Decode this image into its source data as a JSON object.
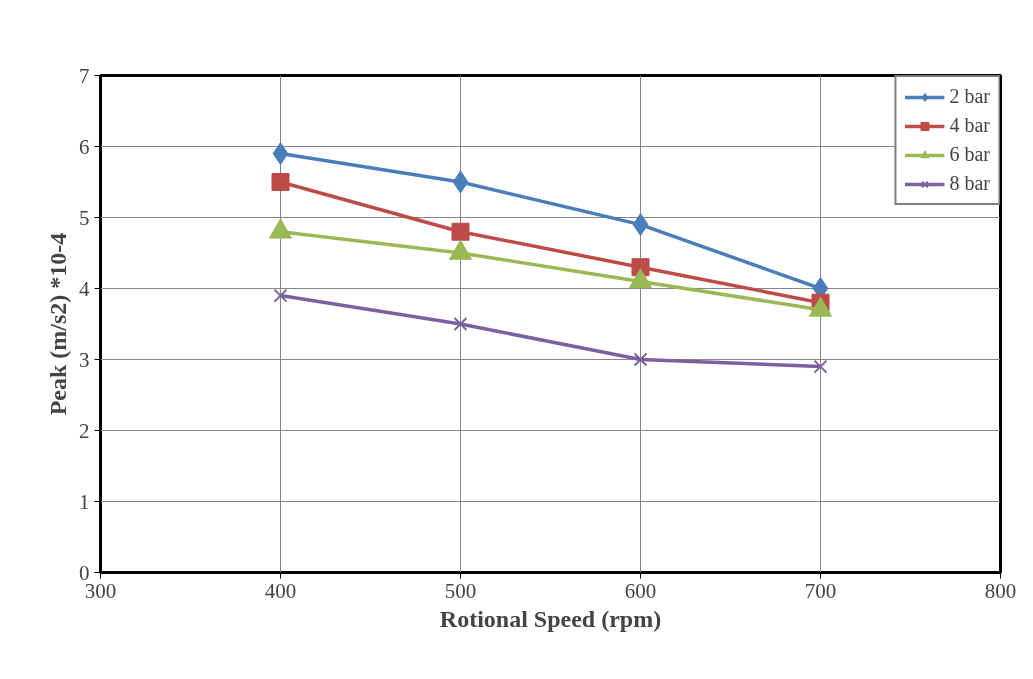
{
  "chart_data": {
    "type": "line",
    "xlabel": "Rotional Speed (rpm)",
    "ylabel": "Peak (m/s2) *10-4",
    "x": [
      400,
      500,
      600,
      700
    ],
    "series": [
      {
        "name": "2 bar",
        "color": "#4a7ebb",
        "marker": "diamond",
        "values": [
          5.9,
          5.5,
          4.9,
          4.0
        ]
      },
      {
        "name": "4 bar",
        "color": "#be4b48",
        "marker": "square",
        "values": [
          5.5,
          4.8,
          4.3,
          3.8
        ]
      },
      {
        "name": "6 bar",
        "color": "#98b954",
        "marker": "triangle",
        "values": [
          4.8,
          4.5,
          4.1,
          3.7
        ]
      },
      {
        "name": "8 bar",
        "color": "#7d60a0",
        "marker": "cross",
        "values": [
          3.9,
          3.5,
          3.0,
          2.9
        ]
      }
    ],
    "xlim": [
      300,
      800
    ],
    "xticks": [
      300,
      400,
      500,
      600,
      700,
      800
    ],
    "ylim": [
      0,
      7
    ],
    "yticks": [
      0,
      1,
      2,
      3,
      4,
      5,
      6,
      7
    ],
    "grid": true,
    "legend": "top right",
    "line_style": "solid"
  }
}
